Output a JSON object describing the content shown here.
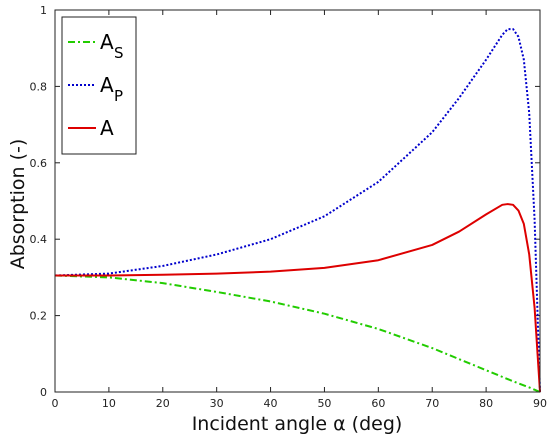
{
  "chart_data": {
    "type": "line",
    "title": "",
    "xlabel": "Incident angle α (deg)",
    "ylabel": "Absorption (-)",
    "xlim": [
      0,
      90
    ],
    "ylim": [
      0,
      1
    ],
    "xticks": [
      0,
      10,
      20,
      30,
      40,
      50,
      60,
      70,
      80,
      90
    ],
    "yticks": [
      0,
      0.2,
      0.4,
      0.6,
      0.8,
      1
    ],
    "xtick_labels": [
      "0",
      "10",
      "20",
      "30",
      "40",
      "50",
      "60",
      "70",
      "80",
      "90"
    ],
    "ytick_labels": [
      "0",
      "0.2",
      "0.4",
      "0.6",
      "0.8",
      "1"
    ],
    "grid": false,
    "legend_position": "top-left",
    "series": [
      {
        "label_main": "A",
        "label_sub": "S",
        "color": "#22cc00",
        "dash": "dash-dot",
        "x": [
          0,
          10,
          20,
          30,
          40,
          50,
          60,
          70,
          80,
          85,
          88,
          90
        ],
        "y": [
          0.305,
          0.3,
          0.285,
          0.262,
          0.237,
          0.205,
          0.165,
          0.115,
          0.057,
          0.028,
          0.012,
          0.0
        ]
      },
      {
        "label_main": "A",
        "label_sub": "P",
        "color": "#0000cc",
        "dash": "dotted",
        "x": [
          0,
          10,
          20,
          30,
          40,
          50,
          60,
          70,
          75,
          80,
          83,
          84,
          85,
          86,
          87,
          88,
          89,
          90
        ],
        "y": [
          0.305,
          0.31,
          0.33,
          0.36,
          0.4,
          0.46,
          0.55,
          0.68,
          0.77,
          0.87,
          0.935,
          0.95,
          0.95,
          0.93,
          0.87,
          0.73,
          0.45,
          0.0
        ]
      },
      {
        "label_main": "A",
        "label_sub": "",
        "color": "#dd0000",
        "dash": "solid",
        "x": [
          0,
          10,
          20,
          30,
          40,
          50,
          60,
          70,
          75,
          80,
          83,
          84,
          85,
          86,
          87,
          88,
          89,
          90
        ],
        "y": [
          0.305,
          0.305,
          0.307,
          0.31,
          0.315,
          0.325,
          0.345,
          0.385,
          0.42,
          0.465,
          0.49,
          0.492,
          0.49,
          0.475,
          0.44,
          0.36,
          0.22,
          0.0
        ]
      }
    ]
  }
}
